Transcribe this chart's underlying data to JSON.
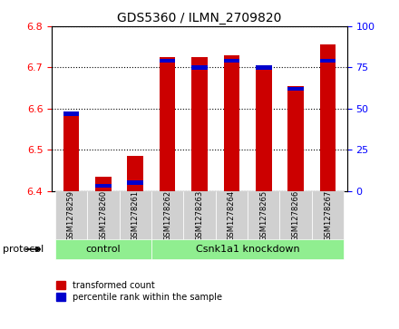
{
  "title": "GDS5360 / ILMN_2709820",
  "samples": [
    "GSM1278259",
    "GSM1278260",
    "GSM1278261",
    "GSM1278262",
    "GSM1278263",
    "GSM1278264",
    "GSM1278265",
    "GSM1278266",
    "GSM1278267"
  ],
  "transformed_counts": [
    6.585,
    6.435,
    6.485,
    6.725,
    6.725,
    6.73,
    6.705,
    6.655,
    6.755
  ],
  "percentile_ranks": [
    47,
    3,
    5,
    79,
    75,
    79,
    75,
    62,
    79
  ],
  "ylim_left": [
    6.4,
    6.8
  ],
  "ylim_right": [
    0,
    100
  ],
  "yticks_left": [
    6.4,
    6.5,
    6.6,
    6.7,
    6.8
  ],
  "yticks_right": [
    0,
    25,
    50,
    75,
    100
  ],
  "bar_color_red": "#cc0000",
  "bar_color_blue": "#0000cc",
  "control_group": [
    "GSM1278259",
    "GSM1278260",
    "GSM1278261"
  ],
  "knockdown_group": [
    "GSM1278262",
    "GSM1278263",
    "GSM1278264",
    "GSM1278265",
    "GSM1278266",
    "GSM1278267"
  ],
  "control_label": "control",
  "knockdown_label": "Csnk1a1 knockdown",
  "protocol_label": "protocol",
  "legend_red": "transformed count",
  "legend_blue": "percentile rank within the sample",
  "bar_width": 0.5,
  "group_bg_control": "#d0d0d0",
  "group_bg_knockdown": "#d0d0d0",
  "protocol_bg": "#90ee90",
  "base_value": 6.4
}
